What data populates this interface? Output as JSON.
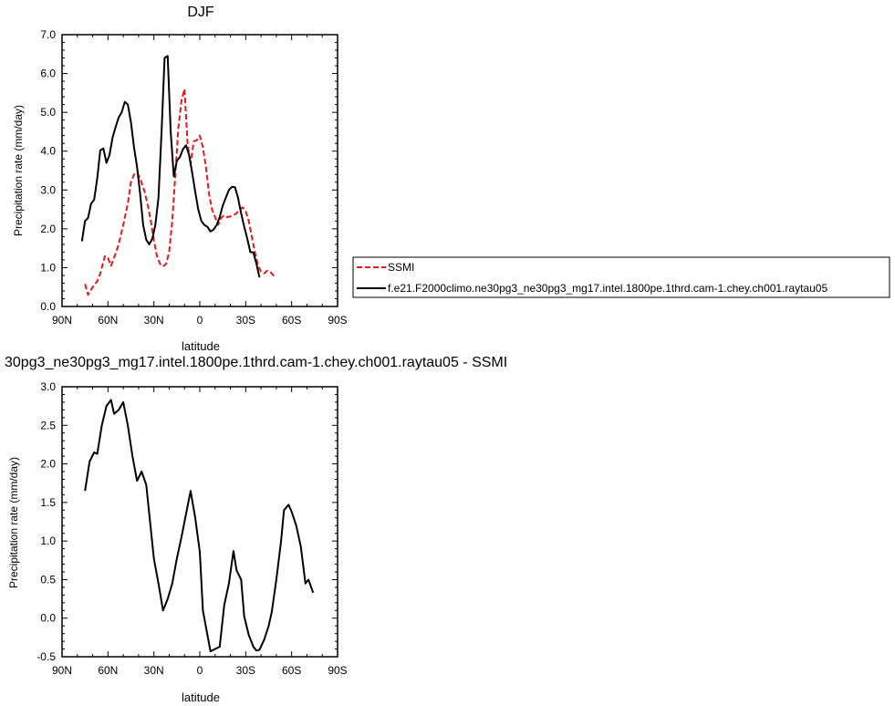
{
  "chart_data": [
    {
      "type": "line",
      "title": "DJF",
      "xlabel": "latitude",
      "ylabel": "Precipitation rate (mm/day)",
      "xlim": [
        90,
        -90
      ],
      "ylim": [
        0,
        7
      ],
      "x_ticks": [
        90,
        60,
        30,
        0,
        -30,
        -60,
        -90
      ],
      "x_tick_labels": [
        "90N",
        "60N",
        "30N",
        "0",
        "30S",
        "60S",
        "90S"
      ],
      "y_ticks": [
        0,
        1,
        2,
        3,
        4,
        5,
        6,
        7
      ],
      "y_tick_labels": [
        "0.0",
        "1.0",
        "2.0",
        "3.0",
        "4.0",
        "5.0",
        "6.0",
        "7.0"
      ],
      "grid": false,
      "legend_position": "right",
      "series": [
        {
          "name": "SSMI",
          "color": "#e41a1c",
          "dash": "dashed",
          "points": [
            [
              75,
              0.58
            ],
            [
              73,
              0.3
            ],
            [
              70,
              0.5
            ],
            [
              67,
              0.65
            ],
            [
              65,
              0.85
            ],
            [
              62,
              1.3
            ],
            [
              60,
              1.25
            ],
            [
              58,
              1.05
            ],
            [
              56,
              1.25
            ],
            [
              53,
              1.6
            ],
            [
              50,
              2.1
            ],
            [
              47,
              2.65
            ],
            [
              45,
              3.2
            ],
            [
              43,
              3.4
            ],
            [
              41,
              3.45
            ],
            [
              39,
              3.3
            ],
            [
              36,
              2.95
            ],
            [
              34,
              2.6
            ],
            [
              32,
              2.2
            ],
            [
              30,
              1.7
            ],
            [
              28,
              1.3
            ],
            [
              26,
              1.1
            ],
            [
              24,
              1.03
            ],
            [
              22,
              1.1
            ],
            [
              20,
              1.4
            ],
            [
              18,
              2.2
            ],
            [
              16,
              3.4
            ],
            [
              14,
              4.6
            ],
            [
              12,
              5.3
            ],
            [
              10,
              5.6
            ],
            [
              8,
              4.2
            ],
            [
              6,
              3.65
            ],
            [
              4,
              4.25
            ],
            [
              2,
              4.28
            ],
            [
              0,
              4.4
            ],
            [
              -2,
              4.1
            ],
            [
              -4,
              3.6
            ],
            [
              -6,
              2.9
            ],
            [
              -8,
              2.5
            ],
            [
              -10,
              2.3
            ],
            [
              -12,
              2.1
            ],
            [
              -14,
              2.28
            ],
            [
              -16,
              2.35
            ],
            [
              -18,
              2.3
            ],
            [
              -20,
              2.32
            ],
            [
              -22,
              2.35
            ],
            [
              -24,
              2.4
            ],
            [
              -26,
              2.5
            ],
            [
              -28,
              2.55
            ],
            [
              -30,
              2.45
            ],
            [
              -32,
              2.2
            ],
            [
              -34,
              1.8
            ],
            [
              -36,
              1.4
            ],
            [
              -38,
              1.05
            ],
            [
              -40,
              0.9
            ],
            [
              -42,
              0.85
            ],
            [
              -44,
              0.92
            ],
            [
              -46,
              0.9
            ],
            [
              -48,
              0.8
            ],
            [
              -50,
              0.76
            ]
          ]
        },
        {
          "name": "f.e21.F2000climo.ne30pg3_ne30pg3_mg17.intel.1800pe.1thrd.cam-1.chey.ch001.raytau05",
          "color": "#000000",
          "dash": "solid",
          "points": [
            [
              77,
              1.68
            ],
            [
              75,
              2.2
            ],
            [
              73,
              2.28
            ],
            [
              71,
              2.65
            ],
            [
              69,
              2.75
            ],
            [
              67,
              3.3
            ],
            [
              65,
              4.02
            ],
            [
              63,
              4.07
            ],
            [
              61,
              3.7
            ],
            [
              59,
              3.9
            ],
            [
              57,
              4.35
            ],
            [
              55,
              4.62
            ],
            [
              53,
              4.87
            ],
            [
              51,
              5.0
            ],
            [
              49,
              5.27
            ],
            [
              47,
              5.2
            ],
            [
              45,
              4.75
            ],
            [
              43,
              4.1
            ],
            [
              41,
              3.6
            ],
            [
              39,
              2.9
            ],
            [
              37,
              2.1
            ],
            [
              35,
              1.72
            ],
            [
              33,
              1.6
            ],
            [
              31,
              1.75
            ],
            [
              29,
              2.1
            ],
            [
              27,
              2.8
            ],
            [
              25,
              4.5
            ],
            [
              23,
              6.4
            ],
            [
              21,
              6.45
            ],
            [
              19,
              4.5
            ],
            [
              17,
              3.35
            ],
            [
              15,
              3.75
            ],
            [
              13,
              3.85
            ],
            [
              11,
              4.05
            ],
            [
              9,
              4.15
            ],
            [
              7,
              3.9
            ],
            [
              5,
              3.45
            ],
            [
              3,
              2.95
            ],
            [
              1,
              2.5
            ],
            [
              -1,
              2.2
            ],
            [
              -3,
              2.1
            ],
            [
              -5,
              2.05
            ],
            [
              -7,
              1.93
            ],
            [
              -9,
              1.98
            ],
            [
              -11,
              2.1
            ],
            [
              -13,
              2.3
            ],
            [
              -15,
              2.6
            ],
            [
              -17,
              2.8
            ],
            [
              -19,
              3.0
            ],
            [
              -21,
              3.08
            ],
            [
              -23,
              3.07
            ],
            [
              -25,
              2.8
            ],
            [
              -27,
              2.4
            ],
            [
              -29,
              2.05
            ],
            [
              -31,
              1.75
            ],
            [
              -33,
              1.4
            ],
            [
              -35,
              1.39
            ],
            [
              -37,
              1.1
            ],
            [
              -39,
              0.75
            ]
          ]
        }
      ]
    },
    {
      "type": "line",
      "title": "30pg3_ne30pg3_mg17.intel.1800pe.1thrd.cam-1.chey.ch001.raytau05 - SSMI",
      "xlabel": "latitude",
      "ylabel": "Precipitation rate (mm/day)",
      "xlim": [
        90,
        -90
      ],
      "ylim": [
        -0.5,
        3.0
      ],
      "x_ticks": [
        90,
        60,
        30,
        0,
        -30,
        -60,
        -90
      ],
      "x_tick_labels": [
        "90N",
        "60N",
        "30N",
        "0",
        "30S",
        "60S",
        "90S"
      ],
      "y_ticks": [
        -0.5,
        0,
        0.5,
        1,
        1.5,
        2,
        2.5,
        3
      ],
      "y_tick_labels": [
        "-0.5",
        "0.0",
        "0.5",
        "1.0",
        "1.5",
        "2.0",
        "2.5",
        "3.0"
      ],
      "grid": false,
      "series": [
        {
          "color": "#000000",
          "dash": "solid",
          "points": [
            [
              75,
              1.65
            ],
            [
              72,
              2.03
            ],
            [
              69,
              2.15
            ],
            [
              67,
              2.13
            ],
            [
              64,
              2.5
            ],
            [
              61,
              2.75
            ],
            [
              58,
              2.83
            ],
            [
              56,
              2.65
            ],
            [
              53,
              2.7
            ],
            [
              50,
              2.8
            ],
            [
              47,
              2.5
            ],
            [
              44,
              2.1
            ],
            [
              41,
              1.78
            ],
            [
              38,
              1.9
            ],
            [
              35,
              1.73
            ],
            [
              33,
              1.35
            ],
            [
              30,
              0.77
            ],
            [
              27,
              0.45
            ],
            [
              24,
              0.1
            ],
            [
              21,
              0.25
            ],
            [
              18,
              0.45
            ],
            [
              15,
              0.77
            ],
            [
              12,
              1.05
            ],
            [
              9,
              1.35
            ],
            [
              6,
              1.65
            ],
            [
              3,
              1.3
            ],
            [
              0,
              0.86
            ],
            [
              -2,
              0.1
            ],
            [
              -5,
              -0.22
            ],
            [
              -7,
              -0.43
            ],
            [
              -10,
              -0.4
            ],
            [
              -13,
              -0.37
            ],
            [
              -16,
              0.17
            ],
            [
              -19,
              0.45
            ],
            [
              -22,
              0.87
            ],
            [
              -24,
              0.62
            ],
            [
              -27,
              0.5
            ],
            [
              -29,
              0.02
            ],
            [
              -32,
              -0.22
            ],
            [
              -35,
              -0.37
            ],
            [
              -37,
              -0.42
            ],
            [
              -39,
              -0.41
            ],
            [
              -42,
              -0.28
            ],
            [
              -45,
              -0.1
            ],
            [
              -47,
              0.08
            ],
            [
              -50,
              0.5
            ],
            [
              -53,
              0.98
            ],
            [
              -55,
              1.4
            ],
            [
              -58,
              1.47
            ],
            [
              -60,
              1.38
            ],
            [
              -63,
              1.2
            ],
            [
              -66,
              0.93
            ],
            [
              -69,
              0.45
            ],
            [
              -71,
              0.5
            ],
            [
              -74,
              0.33
            ]
          ]
        }
      ]
    }
  ]
}
